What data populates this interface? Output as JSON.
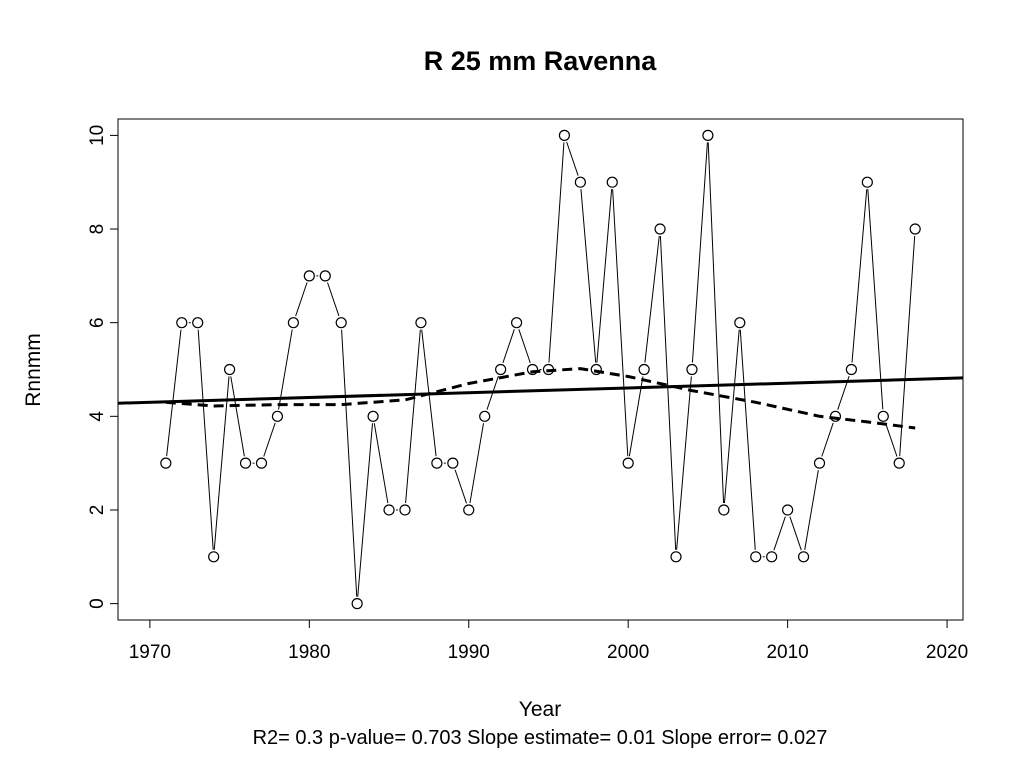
{
  "chart_data": {
    "type": "line",
    "title": "R   25   mm   Ravenna",
    "xlabel": "Year",
    "ylabel": "Rnnmm",
    "xlim": [
      1968,
      2021
    ],
    "ylim": [
      -0.35,
      10.35
    ],
    "xticks": [
      "1970",
      "1980",
      "1990",
      "2000",
      "2010",
      "2020"
    ],
    "yticks": [
      "0",
      "2",
      "4",
      "6",
      "8",
      "10"
    ],
    "grid": false,
    "series": [
      {
        "style": "points-and-lines",
        "x": [
          1971,
          1972,
          1973,
          1974,
          1975,
          1976,
          1977,
          1978,
          1979,
          1980,
          1981,
          1982,
          1983,
          1984,
          1985,
          1986,
          1987,
          1988,
          1989,
          1990,
          1991,
          1992,
          1993,
          1994,
          1995,
          1996,
          1997,
          1998,
          1999,
          2000,
          2001,
          2002,
          2003,
          2004,
          2005,
          2006,
          2007,
          2008,
          2009,
          2010,
          2011,
          2012,
          2013,
          2014,
          2015,
          2016,
          2017,
          2018
        ],
        "values": [
          3,
          6,
          6,
          1,
          5,
          3,
          3,
          4,
          6,
          7,
          7,
          6,
          0,
          4,
          2,
          2,
          6,
          3,
          3,
          2,
          4,
          5,
          6,
          5,
          5,
          10,
          9,
          5,
          9,
          3,
          5,
          8,
          1,
          5,
          10,
          2,
          6,
          1,
          1,
          2,
          1,
          3,
          4,
          5,
          9,
          4,
          3,
          8
        ]
      },
      {
        "style": "solid-trend",
        "x": [
          1968,
          2021
        ],
        "values": [
          4.28,
          4.82
        ]
      },
      {
        "style": "dashed-smooth",
        "x": [
          1971,
          1974,
          1978,
          1982,
          1986,
          1990,
          1994,
          1997,
          2000,
          2004,
          2008,
          2012,
          2015,
          2018
        ],
        "values": [
          4.3,
          4.22,
          4.25,
          4.25,
          4.35,
          4.7,
          4.95,
          5.02,
          4.85,
          4.55,
          4.3,
          4.0,
          3.88,
          3.75
        ]
      }
    ],
    "footer": "R2= 0.3  p-value= 0.703  Slope estimate= 0.01  Slope error= 0.027"
  }
}
